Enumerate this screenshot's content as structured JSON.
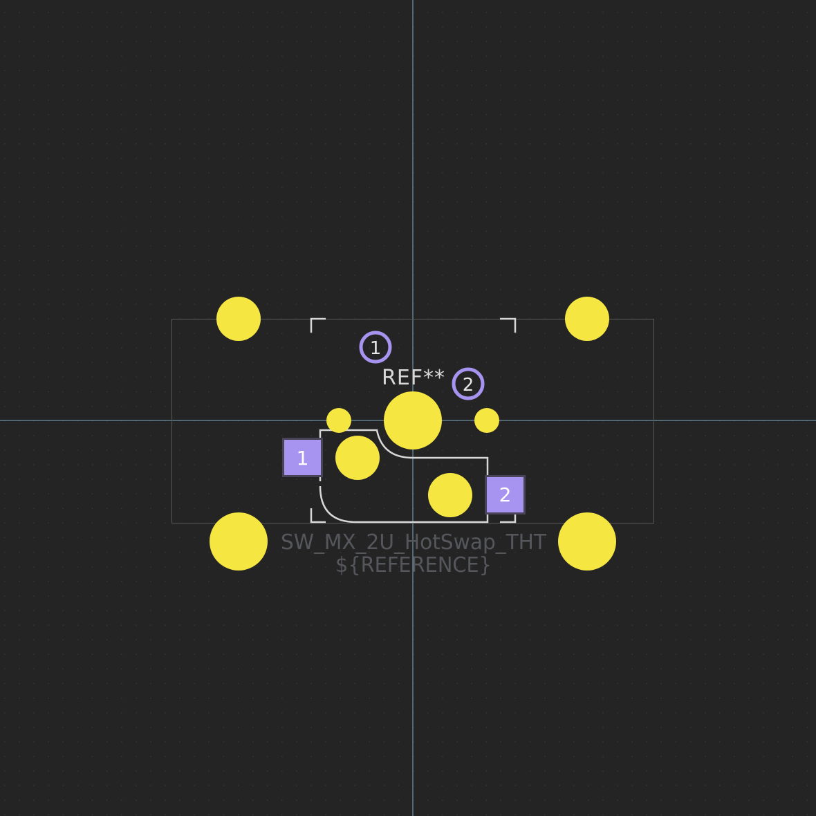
{
  "canvas": {
    "background": "#242424",
    "grid_color": "#3a3a3a",
    "crosshair_color": "#7fa8c0"
  },
  "colors": {
    "drill_hole": "#f5e642",
    "pad": "#a794f0",
    "pad_border": "#4a4458",
    "pad_label": "#ffffff",
    "silkscreen": "#d8d8d8",
    "courtyard": "#5a5a5a",
    "fab_text": "#55575c",
    "ref_text": "#d8d8d8"
  },
  "footprint": {
    "reference": "REF**",
    "value": "SW_MX_2U_HotSwap_THT",
    "reference_field": "${REFERENCE}"
  },
  "pads": [
    {
      "number": "1",
      "shape": "square"
    },
    {
      "number": "2",
      "shape": "square"
    }
  ],
  "pin_markers": [
    {
      "number": "1",
      "shape": "ring"
    },
    {
      "number": "2",
      "shape": "ring"
    }
  ]
}
